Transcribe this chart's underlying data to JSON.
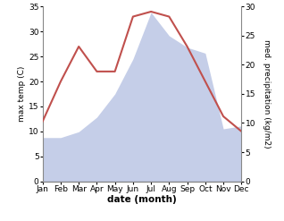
{
  "months": [
    "Jan",
    "Feb",
    "Mar",
    "Apr",
    "May",
    "Jun",
    "Jul",
    "Aug",
    "Sep",
    "Oct",
    "Nov",
    "Dec"
  ],
  "temperature": [
    12,
    20,
    27,
    22,
    22,
    33,
    34,
    33,
    27,
    20,
    13,
    10
  ],
  "precipitation": [
    7.5,
    7.5,
    8.5,
    11,
    15,
    21,
    29,
    25,
    23,
    22,
    9,
    9.5
  ],
  "temp_color": "#c0504d",
  "precip_color": "#c5cee8",
  "left_ylim": [
    0,
    35
  ],
  "right_ylim": [
    0,
    30
  ],
  "left_yticks": [
    0,
    5,
    10,
    15,
    20,
    25,
    30,
    35
  ],
  "right_yticks": [
    0,
    5,
    10,
    15,
    20,
    25,
    30
  ],
  "ylabel_left": "max temp (C)",
  "ylabel_right": "med. precipitation (kg/m2)",
  "xlabel": "date (month)",
  "bg_color": "#ffffff",
  "fig_width": 3.18,
  "fig_height": 2.47,
  "dpi": 100
}
